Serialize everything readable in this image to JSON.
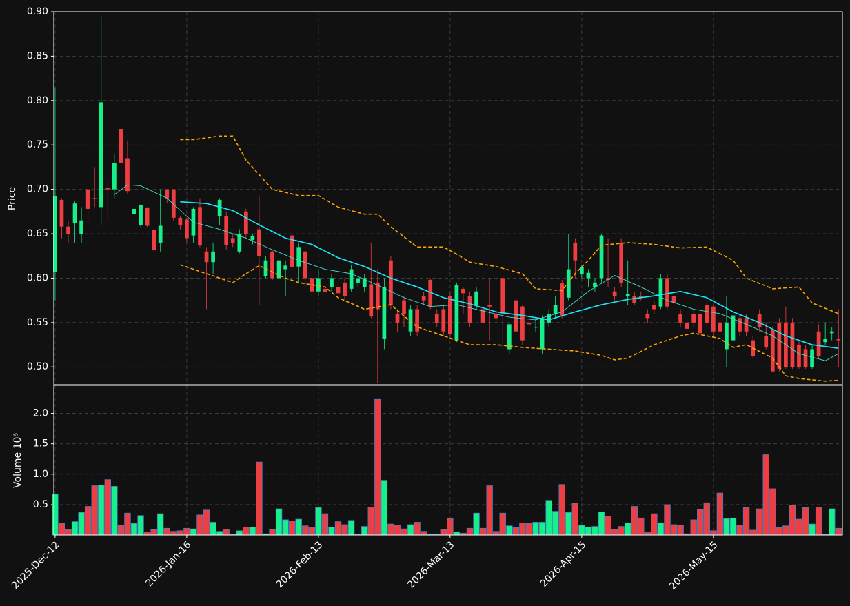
{
  "chart_data": {
    "type": "candlestick",
    "ylabel": "Price",
    "xlim": [
      -0.2,
      119.6
    ],
    "xticks": [
      {
        "value": 0,
        "label": "2025-Dec-12"
      },
      {
        "value": 20,
        "label": "2026-Jan-16"
      },
      {
        "value": 40,
        "label": "2026-Feb-13"
      },
      {
        "value": 60,
        "label": "2026-Mar-13"
      },
      {
        "value": 80,
        "label": "2026-Apr-15"
      },
      {
        "value": 100,
        "label": "2026-May-15"
      }
    ],
    "ylim": [
      0.48,
      0.9
    ],
    "yticks": [
      {
        "value": 0.5,
        "label": "0.50"
      },
      {
        "value": 0.55,
        "label": "0.55"
      },
      {
        "value": 0.6,
        "label": "0.60"
      },
      {
        "value": 0.65,
        "label": "0.65"
      },
      {
        "value": 0.7,
        "label": "0.70"
      },
      {
        "value": 0.75,
        "label": "0.75"
      },
      {
        "value": 0.8,
        "label": "0.80"
      },
      {
        "value": 0.85,
        "label": "0.85"
      },
      {
        "value": 0.9,
        "label": "0.90"
      }
    ],
    "grid": true,
    "up_color": "#16f08a",
    "down_color": "#ef3e42",
    "ohlc": [
      [
        0.607,
        0.815,
        0.575,
        0.692
      ],
      [
        0.688,
        0.69,
        0.645,
        0.658
      ],
      [
        0.658,
        0.665,
        0.64,
        0.65
      ],
      [
        0.662,
        0.687,
        0.64,
        0.684
      ],
      [
        0.65,
        0.68,
        0.64,
        0.665
      ],
      [
        0.7,
        0.7,
        0.665,
        0.678
      ],
      [
        0.69,
        0.725,
        0.68,
        0.689
      ],
      [
        0.68,
        0.895,
        0.66,
        0.798
      ],
      [
        0.702,
        0.71,
        0.665,
        0.7
      ],
      [
        0.7,
        0.74,
        0.69,
        0.73
      ],
      [
        0.768,
        0.77,
        0.725,
        0.73
      ],
      [
        0.735,
        0.755,
        0.695,
        0.698
      ],
      [
        0.672,
        0.68,
        0.67,
        0.678
      ],
      [
        0.66,
        0.683,
        0.658,
        0.682
      ],
      [
        0.679,
        0.68,
        0.658,
        0.659
      ],
      [
        0.654,
        0.655,
        0.63,
        0.632
      ],
      [
        0.64,
        0.7,
        0.63,
        0.659
      ],
      [
        0.7,
        0.7,
        0.685,
        0.69
      ],
      [
        0.7,
        0.7,
        0.665,
        0.668
      ],
      [
        0.668,
        0.67,
        0.655,
        0.66
      ],
      [
        0.666,
        0.668,
        0.64,
        0.645
      ],
      [
        0.648,
        0.68,
        0.64,
        0.678
      ],
      [
        0.68,
        0.69,
        0.635,
        0.637
      ],
      [
        0.63,
        0.635,
        0.565,
        0.618
      ],
      [
        0.618,
        0.64,
        0.605,
        0.63
      ],
      [
        0.67,
        0.69,
        0.66,
        0.688
      ],
      [
        0.67,
        0.675,
        0.632,
        0.637
      ],
      [
        0.645,
        0.65,
        0.635,
        0.64
      ],
      [
        0.63,
        0.655,
        0.628,
        0.65
      ],
      [
        0.675,
        0.678,
        0.645,
        0.65
      ],
      [
        0.643,
        0.65,
        0.638,
        0.647
      ],
      [
        0.655,
        0.693,
        0.57,
        0.625
      ],
      [
        0.602,
        0.625,
        0.6,
        0.62
      ],
      [
        0.63,
        0.632,
        0.598,
        0.6
      ],
      [
        0.6,
        0.675,
        0.595,
        0.62
      ],
      [
        0.61,
        0.62,
        0.58,
        0.614
      ],
      [
        0.648,
        0.65,
        0.608,
        0.612
      ],
      [
        0.613,
        0.64,
        0.595,
        0.635
      ],
      [
        0.63,
        0.632,
        0.59,
        0.6
      ],
      [
        0.6,
        0.605,
        0.58,
        0.585
      ],
      [
        0.585,
        0.61,
        0.58,
        0.6
      ],
      [
        0.588,
        0.59,
        0.58,
        0.584
      ],
      [
        0.59,
        0.605,
        0.585,
        0.6
      ],
      [
        0.59,
        0.6,
        0.58,
        0.583
      ],
      [
        0.595,
        0.6,
        0.575,
        0.58
      ],
      [
        0.588,
        0.615,
        0.585,
        0.61
      ],
      [
        0.595,
        0.6,
        0.59,
        0.6
      ],
      [
        0.59,
        0.605,
        0.585,
        0.6
      ],
      [
        0.593,
        0.64,
        0.555,
        0.557
      ],
      [
        0.595,
        0.61,
        0.482,
        0.565
      ],
      [
        0.532,
        0.6,
        0.52,
        0.59
      ],
      [
        0.62,
        0.625,
        0.565,
        0.57
      ],
      [
        0.56,
        0.565,
        0.54,
        0.55
      ],
      [
        0.575,
        0.58,
        0.545,
        0.56
      ],
      [
        0.54,
        0.57,
        0.535,
        0.565
      ],
      [
        0.565,
        0.57,
        0.535,
        0.54
      ],
      [
        0.58,
        0.585,
        0.57,
        0.575
      ],
      [
        0.598,
        0.6,
        0.565,
        0.568
      ],
      [
        0.56,
        0.565,
        0.545,
        0.55
      ],
      [
        0.565,
        0.57,
        0.535,
        0.54
      ],
      [
        0.58,
        0.585,
        0.535,
        0.537
      ],
      [
        0.53,
        0.595,
        0.528,
        0.592
      ],
      [
        0.588,
        0.59,
        0.56,
        0.583
      ],
      [
        0.58,
        0.585,
        0.545,
        0.55
      ],
      [
        0.57,
        0.59,
        0.565,
        0.585
      ],
      [
        0.565,
        0.57,
        0.545,
        0.55
      ],
      [
        0.57,
        0.6,
        0.53,
        0.568
      ],
      [
        0.56,
        0.565,
        0.55,
        0.555
      ],
      [
        0.6,
        0.6,
        0.52,
        0.56
      ],
      [
        0.52,
        0.55,
        0.515,
        0.548
      ],
      [
        0.575,
        0.58,
        0.535,
        0.54
      ],
      [
        0.568,
        0.57,
        0.525,
        0.53
      ],
      [
        0.55,
        0.555,
        0.52,
        0.548
      ],
      [
        0.545,
        0.555,
        0.54,
        0.545
      ],
      [
        0.52,
        0.558,
        0.515,
        0.555
      ],
      [
        0.55,
        0.565,
        0.545,
        0.56
      ],
      [
        0.56,
        0.58,
        0.555,
        0.57
      ],
      [
        0.594,
        0.598,
        0.555,
        0.558
      ],
      [
        0.578,
        0.65,
        0.575,
        0.61
      ],
      [
        0.64,
        0.645,
        0.6,
        0.62
      ],
      [
        0.605,
        0.615,
        0.6,
        0.612
      ],
      [
        0.6,
        0.61,
        0.59,
        0.606
      ],
      [
        0.59,
        0.6,
        0.585,
        0.595
      ],
      [
        0.6,
        0.65,
        0.595,
        0.648
      ],
      [
        0.6,
        0.645,
        0.59,
        0.598
      ],
      [
        0.585,
        0.59,
        0.575,
        0.58
      ],
      [
        0.64,
        0.645,
        0.59,
        0.595
      ],
      [
        0.58,
        0.62,
        0.57,
        0.582
      ],
      [
        0.58,
        0.585,
        0.57,
        0.572
      ],
      [
        0.58,
        0.585,
        0.575,
        0.578
      ],
      [
        0.56,
        0.565,
        0.55,
        0.555
      ],
      [
        0.57,
        0.575,
        0.56,
        0.565
      ],
      [
        0.568,
        0.605,
        0.565,
        0.6
      ],
      [
        0.6,
        0.605,
        0.565,
        0.568
      ],
      [
        0.58,
        0.585,
        0.565,
        0.572
      ],
      [
        0.56,
        0.565,
        0.545,
        0.55
      ],
      [
        0.55,
        0.555,
        0.54,
        0.543
      ],
      [
        0.56,
        0.565,
        0.545,
        0.55
      ],
      [
        0.56,
        0.565,
        0.535,
        0.538
      ],
      [
        0.57,
        0.575,
        0.545,
        0.55
      ],
      [
        0.568,
        0.57,
        0.535,
        0.54
      ],
      [
        0.55,
        0.555,
        0.535,
        0.54
      ],
      [
        0.52,
        0.58,
        0.5,
        0.55
      ],
      [
        0.53,
        0.56,
        0.525,
        0.558
      ],
      [
        0.555,
        0.56,
        0.535,
        0.54
      ],
      [
        0.555,
        0.56,
        0.535,
        0.54
      ],
      [
        0.53,
        0.535,
        0.51,
        0.512
      ],
      [
        0.56,
        0.565,
        0.54,
        0.545
      ],
      [
        0.535,
        0.55,
        0.52,
        0.522
      ],
      [
        0.542,
        0.545,
        0.495,
        0.495
      ],
      [
        0.55,
        0.555,
        0.495,
        0.498
      ],
      [
        0.55,
        0.568,
        0.498,
        0.5
      ],
      [
        0.55,
        0.555,
        0.498,
        0.5
      ],
      [
        0.525,
        0.53,
        0.498,
        0.5
      ],
      [
        0.52,
        0.525,
        0.498,
        0.5
      ],
      [
        0.5,
        0.525,
        0.498,
        0.52
      ],
      [
        0.54,
        0.548,
        0.51,
        0.512
      ],
      [
        0.528,
        0.55,
        0.525,
        0.532
      ],
      [
        0.538,
        0.545,
        0.53,
        0.54
      ],
      [
        0.532,
        0.565,
        0.5,
        0.53
      ]
    ],
    "overlays": [
      {
        "style": "thin",
        "color": "#40e0d0",
        "x": [
          9,
          11,
          13,
          17,
          21,
          25,
          29,
          33,
          37,
          41,
          45,
          49,
          53,
          57,
          61,
          65,
          69,
          73,
          77,
          81,
          85,
          89,
          93,
          97,
          101,
          105,
          109,
          113,
          117,
          119
        ],
        "values": [
          0.694,
          0.705,
          0.704,
          0.69,
          0.663,
          0.655,
          0.645,
          0.632,
          0.62,
          0.61,
          0.605,
          0.592,
          0.578,
          0.568,
          0.57,
          0.563,
          0.556,
          0.553,
          0.562,
          0.585,
          0.603,
          0.59,
          0.575,
          0.565,
          0.56,
          0.548,
          0.535,
          0.515,
          0.507,
          0.515
        ]
      },
      {
        "style": "thick",
        "color": "#1ae8ff",
        "x": [
          19,
          23,
          27,
          31,
          35,
          39,
          43,
          47,
          51,
          55,
          59,
          63,
          67,
          71,
          75,
          79,
          83,
          87,
          91,
          95,
          99,
          103,
          107,
          111,
          115,
          119
        ],
        "values": [
          0.686,
          0.684,
          0.676,
          0.66,
          0.645,
          0.638,
          0.623,
          0.613,
          0.6,
          0.59,
          0.578,
          0.571,
          0.562,
          0.558,
          0.553,
          0.562,
          0.57,
          0.576,
          0.58,
          0.585,
          0.578,
          0.562,
          0.55,
          0.535,
          0.525,
          0.521
        ]
      },
      {
        "style": "dashed",
        "color": "#ffa500",
        "x": [
          19,
          21,
          25,
          27,
          29,
          33,
          37,
          40,
          43,
          47,
          49,
          51,
          55,
          59,
          61,
          63,
          67,
          71,
          73,
          77,
          79,
          81,
          83,
          87,
          91,
          95,
          99,
          103,
          105,
          109,
          113,
          115,
          119
        ],
        "values": [
          0.756,
          0.756,
          0.76,
          0.76,
          0.733,
          0.7,
          0.693,
          0.693,
          0.68,
          0.672,
          0.672,
          0.658,
          0.635,
          0.635,
          0.627,
          0.618,
          0.613,
          0.605,
          0.588,
          0.586,
          0.605,
          0.62,
          0.637,
          0.64,
          0.638,
          0.634,
          0.635,
          0.62,
          0.6,
          0.588,
          0.59,
          0.572,
          0.56
        ]
      },
      {
        "style": "dashed",
        "color": "#ffa500",
        "x": [
          19,
          21,
          25,
          27,
          29,
          31,
          35,
          37,
          41,
          43,
          47,
          51,
          55,
          59,
          63,
          67,
          71,
          75,
          79,
          83,
          85,
          87,
          91,
          95,
          97,
          101,
          103,
          105,
          109,
          111,
          113,
          117,
          119
        ],
        "values": [
          0.615,
          0.61,
          0.6,
          0.595,
          0.605,
          0.614,
          0.6,
          0.595,
          0.59,
          0.578,
          0.565,
          0.57,
          0.545,
          0.535,
          0.525,
          0.525,
          0.522,
          0.52,
          0.518,
          0.513,
          0.508,
          0.51,
          0.525,
          0.535,
          0.538,
          0.532,
          0.522,
          0.525,
          0.51,
          0.49,
          0.487,
          0.484,
          0.485
        ]
      }
    ],
    "volume": {
      "ylabel": "Volume  10⁶",
      "ylim": [
        0,
        2.46
      ],
      "yticks": [
        0.5,
        {
          "value": 1.0,
          "label": "1.0"
        },
        1.5,
        {
          "value": 2.0,
          "label": "2.0"
        }
      ],
      "edge_color": "#4a7fc1",
      "values": [
        0.67,
        0.19,
        0.09,
        0.22,
        0.37,
        0.47,
        0.81,
        0.82,
        0.91,
        0.8,
        0.16,
        0.36,
        0.19,
        0.32,
        0.05,
        0.09,
        0.35,
        0.11,
        0.06,
        0.07,
        0.11,
        0.1,
        0.33,
        0.41,
        0.21,
        0.06,
        0.09,
        0.01,
        0.07,
        0.13,
        0.13,
        1.2,
        0.02,
        0.09,
        0.43,
        0.25,
        0.23,
        0.26,
        0.15,
        0.13,
        0.45,
        0.35,
        0.13,
        0.22,
        0.17,
        0.24,
        0.01,
        0.14,
        0.46,
        2.23,
        0.9,
        0.18,
        0.16,
        0.1,
        0.17,
        0.21,
        0.06,
        0.01,
        0.01,
        0.09,
        0.27,
        0.05,
        0.03,
        0.11,
        0.36,
        0.11,
        0.81,
        0.06,
        0.36,
        0.15,
        0.12,
        0.2,
        0.19,
        0.21,
        0.21,
        0.57,
        0.39,
        0.83,
        0.37,
        0.52,
        0.16,
        0.13,
        0.14,
        0.38,
        0.31,
        0.09,
        0.14,
        0.2,
        0.47,
        0.28,
        0.04,
        0.35,
        0.2,
        0.5,
        0.17,
        0.16,
        0.02,
        0.25,
        0.42,
        0.53,
        0.07,
        0.69,
        0.27,
        0.28,
        0.16,
        0.45,
        0.08,
        0.43,
        1.32,
        0.76,
        0.12,
        0.15,
        0.49,
        0.26,
        0.45,
        0.18,
        0.46,
        0.01,
        0.43,
        0.11
      ]
    }
  }
}
